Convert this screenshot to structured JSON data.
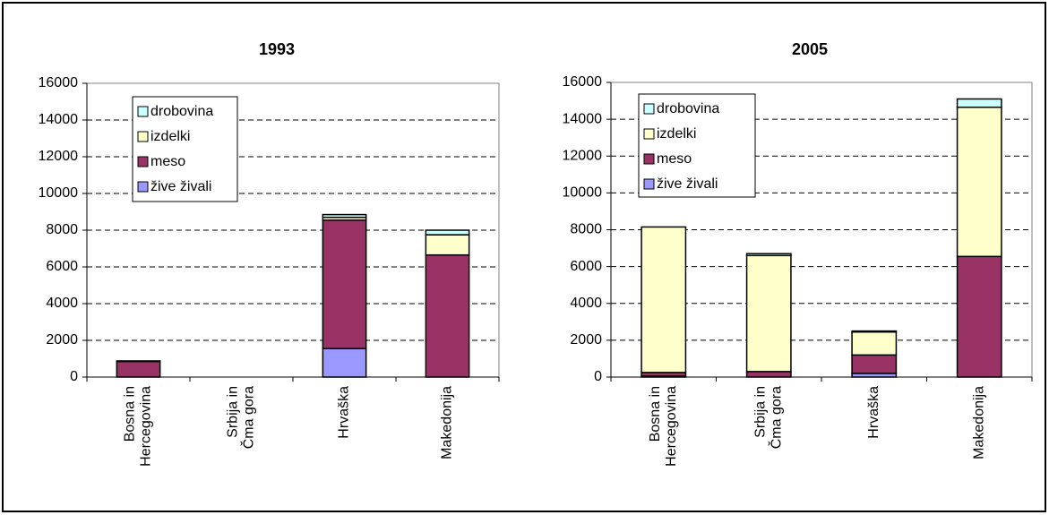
{
  "chart_data": [
    {
      "type": "bar",
      "stacked": true,
      "title": "1993",
      "categories": [
        [
          "Bosna in",
          "Hercegovina"
        ],
        [
          "Srbija in",
          "Čma gora"
        ],
        [
          "Hrvaška"
        ],
        [
          "Makedonija"
        ]
      ],
      "series": [
        {
          "name": "žive živali",
          "color": "#9999ff",
          "values": [
            0,
            0,
            1550,
            0
          ]
        },
        {
          "name": "meso",
          "color": "#993366",
          "values": [
            850,
            0,
            7000,
            6650
          ]
        },
        {
          "name": "izdelki",
          "color": "#ffffcc",
          "values": [
            30,
            0,
            150,
            1100
          ]
        },
        {
          "name": "drobovina",
          "color": "#ccffff",
          "values": [
            0,
            0,
            150,
            250
          ]
        }
      ],
      "ylim": [
        0,
        16000
      ],
      "yticks": [
        0,
        2000,
        4000,
        6000,
        8000,
        10000,
        12000,
        14000,
        16000
      ],
      "grid": true
    },
    {
      "type": "bar",
      "stacked": true,
      "title": "2005",
      "categories": [
        [
          "Bosna in",
          "Hercegovina"
        ],
        [
          "Srbija in",
          "Čma gora"
        ],
        [
          "Hrvaška"
        ],
        [
          "Makedonija"
        ]
      ],
      "series": [
        {
          "name": "žive živali",
          "color": "#9999ff",
          "values": [
            50,
            0,
            200,
            0
          ]
        },
        {
          "name": "meso",
          "color": "#993366",
          "values": [
            200,
            300,
            1000,
            6550
          ]
        },
        {
          "name": "izdelki",
          "color": "#ffffcc",
          "values": [
            7900,
            6300,
            1250,
            8100
          ]
        },
        {
          "name": "drobovina",
          "color": "#ccffff",
          "values": [
            0,
            100,
            50,
            450
          ]
        }
      ],
      "ylim": [
        0,
        16000
      ],
      "yticks": [
        0,
        2000,
        4000,
        6000,
        8000,
        10000,
        12000,
        14000,
        16000
      ],
      "grid": true
    }
  ]
}
